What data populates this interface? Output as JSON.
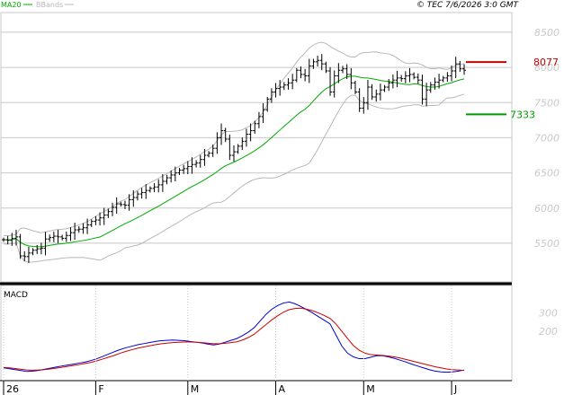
{
  "header": {
    "legend_ma20": "MA20",
    "legend_bbands": "BBands",
    "copyright": "© TEC 7/6/2026 3:0 GMT"
  },
  "colors": {
    "price_bar": "#000000",
    "ma20": "#00aa00",
    "bbands": "#b8b8b8",
    "resistance": "#cc0000",
    "support": "#009900",
    "macd": "#0000cc",
    "signal": "#cc0000",
    "grid": "#c8c8c8"
  },
  "levels": {
    "resistance": {
      "value": 8077,
      "label": "8077"
    },
    "support": {
      "value": 7333,
      "label": "7333"
    }
  },
  "chart_data": [
    {
      "type": "ohlc",
      "name": "price",
      "y_ticks": [
        "8500",
        "8000",
        "7500",
        "7000",
        "6500",
        "6000",
        "5500"
      ],
      "y_tick_values": [
        8500,
        8000,
        7500,
        7000,
        6500,
        6000,
        5500
      ],
      "ylim": [
        4950,
        8780
      ],
      "x_labels": [
        "26",
        "F",
        "M",
        "A",
        "M",
        "J"
      ],
      "x_label_positions": [
        0,
        22,
        44,
        65,
        86,
        107
      ],
      "n_bars": 111,
      "close": [
        5550,
        5540,
        5570,
        5590,
        5320,
        5310,
        5360,
        5400,
        5420,
        5430,
        5560,
        5580,
        5600,
        5590,
        5570,
        5610,
        5650,
        5690,
        5700,
        5720,
        5760,
        5810,
        5830,
        5860,
        5900,
        5950,
        6010,
        6060,
        6050,
        6040,
        6120,
        6150,
        6200,
        6220,
        6250,
        6280,
        6300,
        6330,
        6380,
        6430,
        6470,
        6500,
        6540,
        6560,
        6590,
        6620,
        6640,
        6690,
        6750,
        6780,
        6850,
        7000,
        7100,
        6980,
        6750,
        6800,
        6880,
        6950,
        7050,
        7100,
        7200,
        7300,
        7400,
        7550,
        7650,
        7700,
        7720,
        7750,
        7780,
        7820,
        7960,
        7900,
        7880,
        8020,
        8080,
        8100,
        8050,
        7950,
        7650,
        7880,
        7960,
        7980,
        7900,
        7780,
        7650,
        7420,
        7500,
        7720,
        7580,
        7620,
        7680,
        7720,
        7780,
        7820,
        7850,
        7840,
        7880,
        7900,
        7860,
        7820,
        7550,
        7680,
        7750,
        7790,
        7820,
        7850,
        7880,
        7950,
        8050,
        7980,
        7960
      ]
    },
    {
      "type": "line",
      "name": "macd-panel",
      "title": "MACD",
      "y_ticks": [
        "300",
        "200"
      ],
      "y_tick_values": [
        300,
        200
      ],
      "ylim": [
        -70,
        450
      ],
      "series": [
        {
          "name": "MACD",
          "values": [
            0,
            -5,
            -10,
            -15,
            -20,
            -18,
            -14,
            -8,
            -2,
            4,
            10,
            15,
            20,
            26,
            32,
            40,
            50,
            62,
            75,
            88,
            100,
            110,
            118,
            126,
            132,
            138,
            144,
            148,
            150,
            152,
            150,
            148,
            144,
            140,
            136,
            130,
            125,
            130,
            140,
            150,
            160,
            176,
            196,
            220,
            256,
            292,
            320,
            340,
            354,
            360,
            350,
            335,
            318,
            300,
            280,
            260,
            240,
            180,
            120,
            80,
            60,
            50,
            50,
            58,
            66,
            66,
            60,
            52,
            42,
            32,
            20,
            10,
            0,
            -10,
            -18,
            -22,
            -24,
            -22,
            -18,
            -12
          ]
        },
        {
          "name": "Signal",
          "values": [
            2,
            0,
            -4,
            -8,
            -12,
            -13,
            -12,
            -10,
            -6,
            -2,
            3,
            8,
            13,
            18,
            24,
            30,
            38,
            48,
            58,
            68,
            80,
            90,
            99,
            107,
            114,
            120,
            126,
            131,
            135,
            138,
            140,
            141,
            141,
            140,
            138,
            135,
            132,
            132,
            134,
            138,
            142,
            152,
            166,
            184,
            210,
            236,
            262,
            284,
            304,
            318,
            324,
            326,
            320,
            312,
            300,
            286,
            270,
            240,
            200,
            160,
            122,
            96,
            80,
            72,
            70,
            68,
            64,
            60,
            54,
            46,
            38,
            30,
            22,
            14,
            6,
            0,
            -6,
            -10,
            -12,
            -14
          ]
        }
      ]
    }
  ]
}
